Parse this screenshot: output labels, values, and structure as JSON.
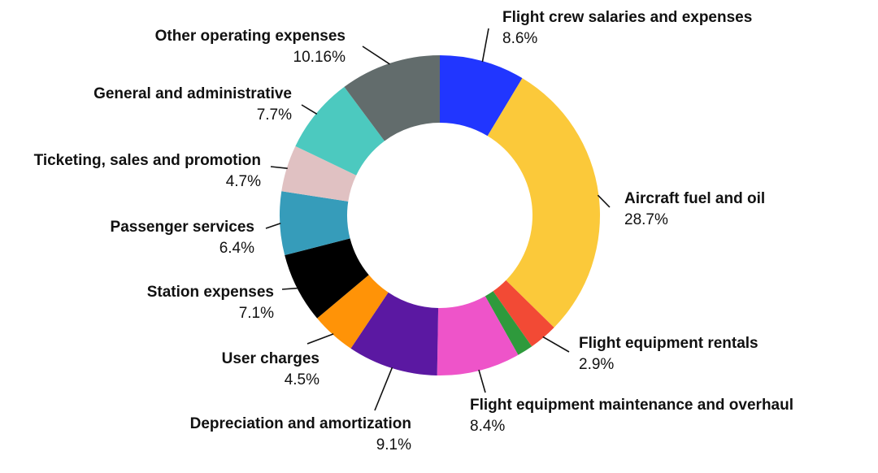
{
  "chart_data": {
    "type": "pie",
    "donut": true,
    "title": "",
    "slices": [
      {
        "name": "Flight crew salaries and expenses",
        "label": "8.6%",
        "value": 8.6,
        "color": "#2136FF"
      },
      {
        "name": "Aircraft fuel and oil",
        "label": "28.7%",
        "value": 28.7,
        "color": "#FBC93A"
      },
      {
        "name": "Flight equipment rentals",
        "label": "2.9%",
        "value": 2.9,
        "color": "#F24A35"
      },
      {
        "name": "",
        "label": "",
        "value": 1.6,
        "color": "#2E9A3C"
      },
      {
        "name": "Flight equipment maintenance and overhaul",
        "label": "8.4%",
        "value": 8.4,
        "color": "#EE54C9"
      },
      {
        "name": "Depreciation and amortization",
        "label": "9.1%",
        "value": 9.1,
        "color": "#5B18A2"
      },
      {
        "name": "User charges",
        "label": "4.5%",
        "value": 4.5,
        "color": "#FF9307"
      },
      {
        "name": "Station expenses",
        "label": "7.1%",
        "value": 7.1,
        "color": "#000000"
      },
      {
        "name": "Passenger services",
        "label": "6.4%",
        "value": 6.4,
        "color": "#369CBA"
      },
      {
        "name": "Ticketing, sales and promotion",
        "label": "4.7%",
        "value": 4.7,
        "color": "#E0C1C2"
      },
      {
        "name": "General and administrative",
        "label": "7.7%",
        "value": 7.7,
        "color": "#4CC9BF"
      },
      {
        "name": "Other operating expenses",
        "label": "10.16%",
        "value": 10.16,
        "color": "#626C6C"
      }
    ]
  }
}
